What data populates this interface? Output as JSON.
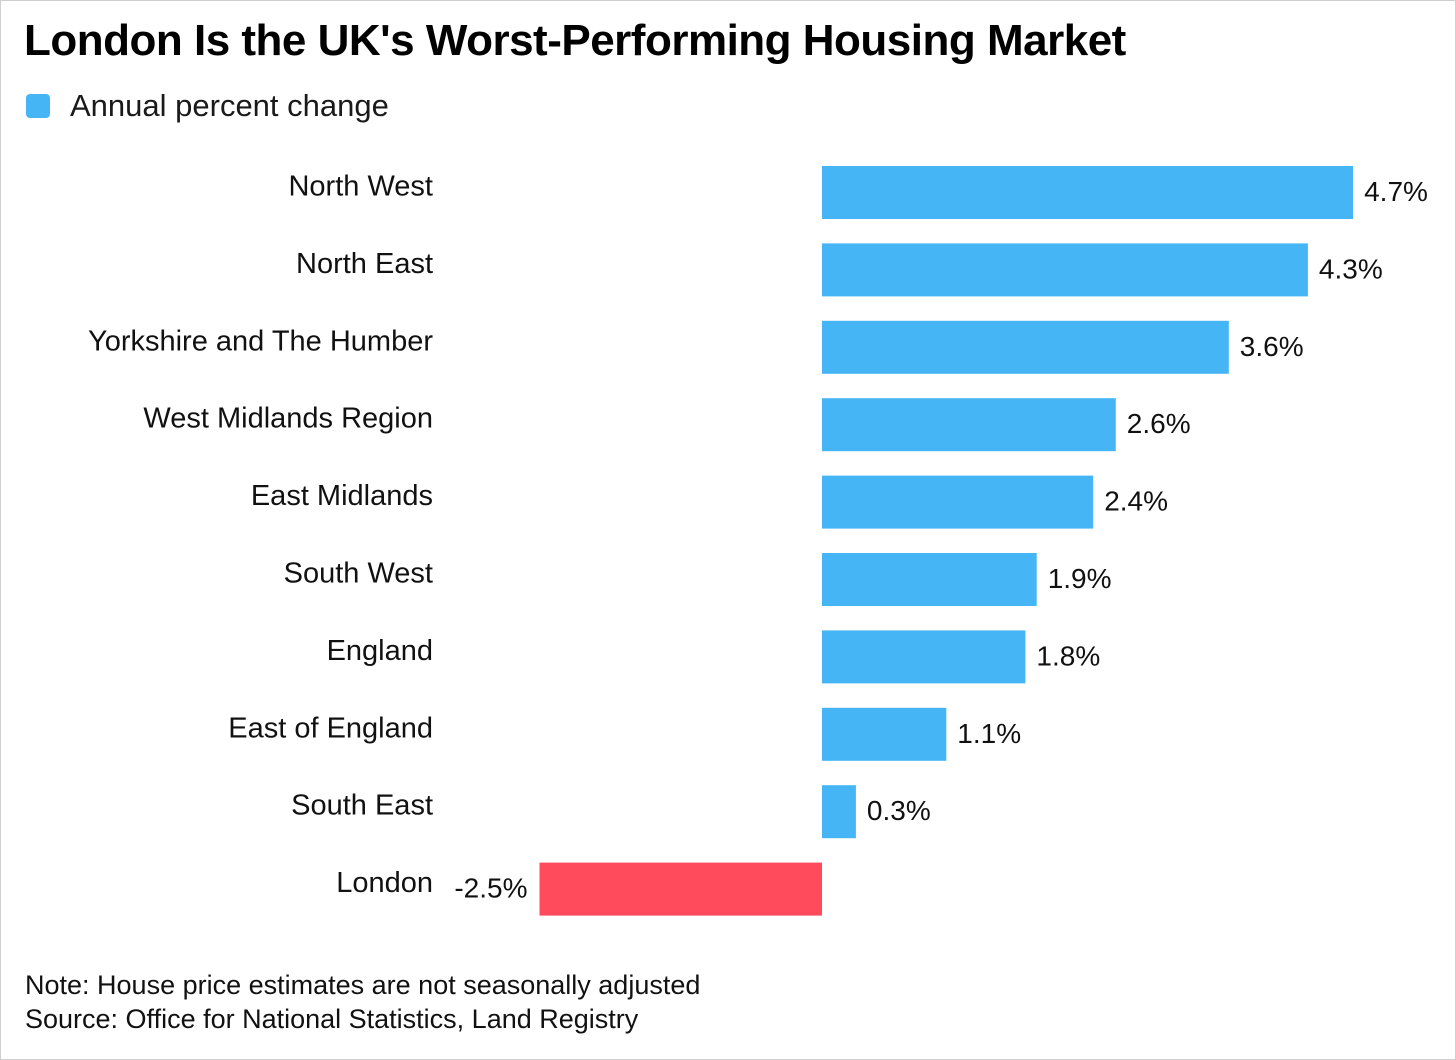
{
  "chart_data": {
    "type": "bar",
    "orientation": "horizontal",
    "title": "London Is the UK's Worst-Performing Housing Market",
    "legend": {
      "position": "top-left",
      "entries": [
        {
          "name": "Annual percent change",
          "color": "#45b5f5"
        }
      ]
    },
    "categories": [
      "North West",
      "North East",
      "Yorkshire and The Humber",
      "West Midlands Region",
      "East Midlands",
      "South West",
      "England",
      "East of England",
      "South East",
      "London"
    ],
    "series": [
      {
        "name": "Annual percent change",
        "values": [
          4.7,
          4.3,
          3.6,
          2.6,
          2.4,
          1.9,
          1.8,
          1.1,
          0.3,
          -2.5
        ]
      }
    ],
    "data_labels": [
      "4.7%",
      "4.3%",
      "3.6%",
      "2.6%",
      "2.4%",
      "1.9%",
      "1.8%",
      "1.1%",
      "0.3%",
      "-2.5%"
    ],
    "xlim": [
      -2.5,
      4.7
    ],
    "grid": false,
    "colors": {
      "positive": "#45b5f5",
      "negative": "#ff4b5c"
    }
  },
  "footer": {
    "note": "Note: House price estimates are not seasonally adjusted",
    "source": "Source: Office for National Statistics, Land Registry"
  }
}
